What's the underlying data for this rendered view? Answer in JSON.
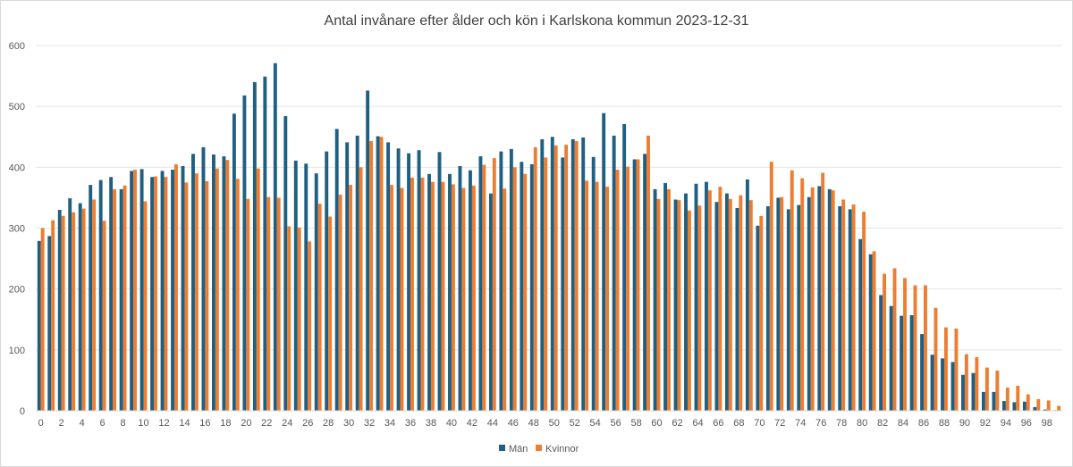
{
  "chart_data": {
    "type": "bar",
    "title": "Antal invånare efter ålder och kön i Karlskona kommun 2023-12-31",
    "xlabel": "",
    "ylabel": "",
    "ylim": [
      0,
      600
    ],
    "yticks": [
      0,
      100,
      200,
      300,
      400,
      500,
      600
    ],
    "grid": true,
    "legend_position": "bottom",
    "categories": [
      0,
      1,
      2,
      3,
      4,
      5,
      6,
      7,
      8,
      9,
      10,
      11,
      12,
      13,
      14,
      15,
      16,
      17,
      18,
      19,
      20,
      21,
      22,
      23,
      24,
      25,
      26,
      27,
      28,
      29,
      30,
      31,
      32,
      33,
      34,
      35,
      36,
      37,
      38,
      39,
      40,
      41,
      42,
      43,
      44,
      45,
      46,
      47,
      48,
      49,
      50,
      51,
      52,
      53,
      54,
      55,
      56,
      57,
      58,
      59,
      60,
      61,
      62,
      63,
      64,
      65,
      66,
      67,
      68,
      69,
      70,
      71,
      72,
      73,
      74,
      75,
      76,
      77,
      78,
      79,
      80,
      81,
      82,
      83,
      84,
      85,
      86,
      87,
      88,
      89,
      90,
      91,
      92,
      93,
      94,
      95,
      96,
      97,
      98,
      99
    ],
    "series": [
      {
        "name": "Män",
        "color": "#1f5f82",
        "values": [
          279,
          287,
          330,
          349,
          341,
          371,
          379,
          384,
          364,
          394,
          397,
          384,
          394,
          396,
          402,
          422,
          433,
          421,
          418,
          488,
          518,
          540,
          549,
          571,
          484,
          411,
          406,
          390,
          426,
          463,
          441,
          452,
          526,
          451,
          441,
          431,
          423,
          428,
          389,
          425,
          389,
          402,
          395,
          418,
          357,
          426,
          430,
          409,
          405,
          446,
          450,
          416,
          446,
          449,
          417,
          489,
          452,
          471,
          413,
          422,
          364,
          374,
          347,
          357,
          373,
          376,
          343,
          357,
          333,
          380,
          304,
          336,
          350,
          331,
          338,
          351,
          369,
          364,
          336,
          331,
          282,
          257,
          190,
          172,
          156,
          157,
          126,
          92,
          86,
          80,
          59,
          62,
          31,
          31,
          16,
          14,
          15,
          6,
          2,
          1
        ]
      },
      {
        "name": "Kvinnor",
        "color": "#ed7d31",
        "values": [
          300,
          313,
          320,
          326,
          332,
          347,
          312,
          364,
          370,
          396,
          344,
          385,
          384,
          405,
          375,
          390,
          377,
          398,
          412,
          381,
          348,
          398,
          351,
          350,
          303,
          301,
          278,
          340,
          319,
          355,
          371,
          400,
          443,
          450,
          371,
          366,
          383,
          383,
          376,
          376,
          372,
          366,
          370,
          404,
          415,
          365,
          400,
          389,
          433,
          416,
          436,
          437,
          443,
          378,
          376,
          368,
          396,
          401,
          413,
          452,
          348,
          364,
          346,
          329,
          337,
          362,
          368,
          348,
          354,
          346,
          320,
          409,
          351,
          395,
          382,
          367,
          391,
          362,
          347,
          339,
          327,
          262,
          225,
          234,
          218,
          206,
          206,
          169,
          137,
          135,
          93,
          88,
          71,
          66,
          38,
          41,
          27,
          19,
          17,
          8
        ]
      }
    ]
  }
}
